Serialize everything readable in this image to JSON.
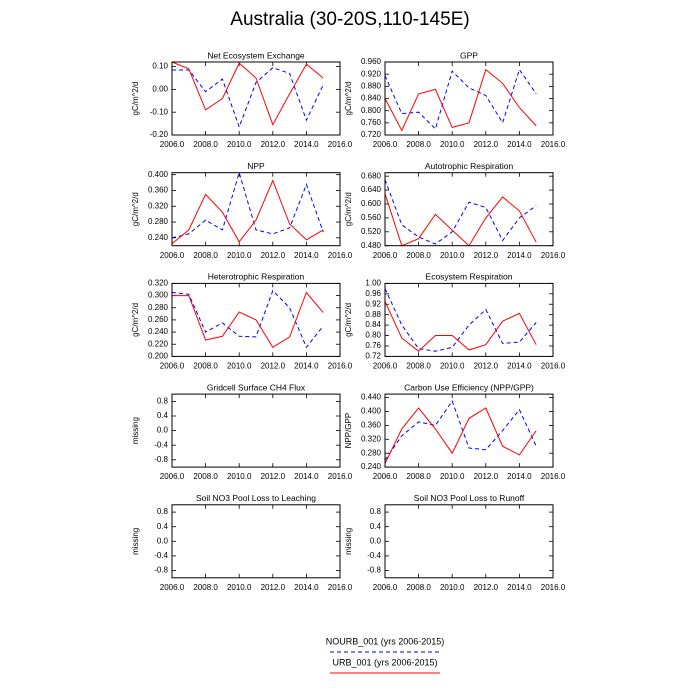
{
  "title": "Australia (30-20S,110-145E)",
  "chart_data": [
    {
      "type": "line",
      "title": "Net Ecosystem Exchange",
      "ylabel": "gC/m^2/d",
      "x": [
        2006,
        2007,
        2008,
        2009,
        2010,
        2011,
        2012,
        2013,
        2014,
        2015
      ],
      "xlim": [
        2006,
        2016
      ],
      "xticks": [
        {
          "value": 2006,
          "label": "2006.0"
        },
        {
          "value": 2008,
          "label": "2008.0"
        },
        {
          "value": 2010,
          "label": "2010.0"
        },
        {
          "value": 2012,
          "label": "2012.0"
        },
        {
          "value": 2014,
          "label": "2014.0"
        },
        {
          "value": 2016,
          "label": "2016.0"
        }
      ],
      "ylim": [
        -0.2,
        0.12
      ],
      "yticks": [
        {
          "value": -0.2,
          "label": "-0.20"
        },
        {
          "value": -0.1,
          "label": "-0.10"
        },
        {
          "value": 0,
          "label": "0.00"
        },
        {
          "value": 0.1,
          "label": "0.10"
        }
      ],
      "series": [
        {
          "name": "NOURB_001 (yrs 2006-2015)",
          "color": "#0000ff",
          "dashed": true,
          "values": [
            0.085,
            0.085,
            -0.01,
            0.045,
            -0.165,
            0.03,
            0.095,
            0.07,
            -0.135,
            0.02
          ]
        },
        {
          "name": "URB_001 (yrs 2006-2015)",
          "color": "#ff0000",
          "dashed": false,
          "values": [
            0.12,
            0.09,
            -0.09,
            -0.04,
            0.115,
            0.05,
            -0.155,
            -0.02,
            0.11,
            0.05
          ]
        }
      ]
    },
    {
      "type": "line",
      "title": "GPP",
      "ylabel": "gC/m^2/d",
      "x": [
        2006,
        2007,
        2008,
        2009,
        2010,
        2011,
        2012,
        2013,
        2014,
        2015
      ],
      "xlim": [
        2006,
        2016
      ],
      "xticks": [
        {
          "value": 2006,
          "label": "2006.0"
        },
        {
          "value": 2008,
          "label": "2008.0"
        },
        {
          "value": 2010,
          "label": "2010.0"
        },
        {
          "value": 2012,
          "label": "2012.0"
        },
        {
          "value": 2014,
          "label": "2014.0"
        },
        {
          "value": 2016,
          "label": "2016.0"
        }
      ],
      "ylim": [
        0.72,
        0.96
      ],
      "yticks": [
        {
          "value": 0.72,
          "label": "0.720"
        },
        {
          "value": 0.76,
          "label": "0.760"
        },
        {
          "value": 0.8,
          "label": "0.800"
        },
        {
          "value": 0.84,
          "label": "0.840"
        },
        {
          "value": 0.88,
          "label": "0.880"
        },
        {
          "value": 0.92,
          "label": "0.920"
        },
        {
          "value": 0.96,
          "label": "0.960"
        }
      ],
      "series": [
        {
          "name": "NOURB_001 (yrs 2006-2015)",
          "color": "#0000ff",
          "dashed": true,
          "values": [
            0.915,
            0.79,
            0.795,
            0.74,
            0.93,
            0.875,
            0.85,
            0.76,
            0.935,
            0.855
          ]
        },
        {
          "name": "URB_001 (yrs 2006-2015)",
          "color": "#ff0000",
          "dashed": false,
          "values": [
            0.84,
            0.735,
            0.855,
            0.87,
            0.745,
            0.76,
            0.935,
            0.89,
            0.81,
            0.75
          ]
        }
      ]
    },
    {
      "type": "line",
      "title": "NPP",
      "ylabel": "gC/m^2/d",
      "x": [
        2006,
        2007,
        2008,
        2009,
        2010,
        2011,
        2012,
        2013,
        2014,
        2015
      ],
      "xlim": [
        2006,
        2016
      ],
      "xticks": [
        {
          "value": 2006,
          "label": "2006.0"
        },
        {
          "value": 2008,
          "label": "2008.0"
        },
        {
          "value": 2010,
          "label": "2010.0"
        },
        {
          "value": 2012,
          "label": "2012.0"
        },
        {
          "value": 2014,
          "label": "2014.0"
        },
        {
          "value": 2016,
          "label": "2016.0"
        }
      ],
      "ylim": [
        0.22,
        0.405
      ],
      "yticks": [
        {
          "value": 0.24,
          "label": "0.240"
        },
        {
          "value": 0.28,
          "label": "0.280"
        },
        {
          "value": 0.32,
          "label": "0.320"
        },
        {
          "value": 0.36,
          "label": "0.360"
        },
        {
          "value": 0.4,
          "label": "0.400"
        }
      ],
      "series": [
        {
          "name": "NOURB_001 (yrs 2006-2015)",
          "color": "#0000ff",
          "dashed": true,
          "values": [
            0.24,
            0.25,
            0.285,
            0.26,
            0.405,
            0.26,
            0.25,
            0.265,
            0.375,
            0.255
          ]
        },
        {
          "name": "URB_001 (yrs 2006-2015)",
          "color": "#ff0000",
          "dashed": false,
          "values": [
            0.225,
            0.26,
            0.35,
            0.305,
            0.23,
            0.285,
            0.385,
            0.275,
            0.235,
            0.26
          ]
        }
      ]
    },
    {
      "type": "line",
      "title": "Autotrophic Respiration",
      "ylabel": "gC/m^2/d",
      "x": [
        2006,
        2007,
        2008,
        2009,
        2010,
        2011,
        2012,
        2013,
        2014,
        2015
      ],
      "xlim": [
        2006,
        2016
      ],
      "xticks": [
        {
          "value": 2006,
          "label": "2006.0"
        },
        {
          "value": 2008,
          "label": "2008.0"
        },
        {
          "value": 2010,
          "label": "2010.0"
        },
        {
          "value": 2012,
          "label": "2012.0"
        },
        {
          "value": 2014,
          "label": "2014.0"
        },
        {
          "value": 2016,
          "label": "2016.0"
        }
      ],
      "ylim": [
        0.48,
        0.69
      ],
      "yticks": [
        {
          "value": 0.48,
          "label": "0.480"
        },
        {
          "value": 0.52,
          "label": "0.520"
        },
        {
          "value": 0.56,
          "label": "0.560"
        },
        {
          "value": 0.6,
          "label": "0.600"
        },
        {
          "value": 0.64,
          "label": "0.640"
        },
        {
          "value": 0.68,
          "label": "0.680"
        }
      ],
      "series": [
        {
          "name": "NOURB_001 (yrs 2006-2015)",
          "color": "#0000ff",
          "dashed": true,
          "values": [
            0.67,
            0.54,
            0.505,
            0.485,
            0.52,
            0.605,
            0.59,
            0.495,
            0.56,
            0.595
          ]
        },
        {
          "name": "URB_001 (yrs 2006-2015)",
          "color": "#ff0000",
          "dashed": false,
          "values": [
            0.63,
            0.48,
            0.5,
            0.57,
            0.525,
            0.48,
            0.56,
            0.62,
            0.58,
            0.49
          ]
        }
      ]
    },
    {
      "type": "line",
      "title": "Heterotrophic Respiration",
      "ylabel": "gC/m^2/d",
      "x": [
        2006,
        2007,
        2008,
        2009,
        2010,
        2011,
        2012,
        2013,
        2014,
        2015
      ],
      "xlim": [
        2006,
        2016
      ],
      "xticks": [
        {
          "value": 2006,
          "label": "2006.0"
        },
        {
          "value": 2008,
          "label": "2008.0"
        },
        {
          "value": 2010,
          "label": "2010.0"
        },
        {
          "value": 2012,
          "label": "2012.0"
        },
        {
          "value": 2014,
          "label": "2014.0"
        },
        {
          "value": 2016,
          "label": "2016.0"
        }
      ],
      "ylim": [
        0.2,
        0.32
      ],
      "yticks": [
        {
          "value": 0.2,
          "label": "0.200"
        },
        {
          "value": 0.22,
          "label": "0.220"
        },
        {
          "value": 0.24,
          "label": "0.240"
        },
        {
          "value": 0.26,
          "label": "0.260"
        },
        {
          "value": 0.28,
          "label": "0.280"
        },
        {
          "value": 0.3,
          "label": "0.300"
        },
        {
          "value": 0.32,
          "label": "0.320"
        }
      ],
      "series": [
        {
          "name": "NOURB_001 (yrs 2006-2015)",
          "color": "#0000ff",
          "dashed": true,
          "values": [
            0.305,
            0.302,
            0.24,
            0.255,
            0.233,
            0.232,
            0.308,
            0.28,
            0.215,
            0.25
          ]
        },
        {
          "name": "URB_001 (yrs 2006-2015)",
          "color": "#ff0000",
          "dashed": false,
          "values": [
            0.3,
            0.3,
            0.227,
            0.233,
            0.273,
            0.26,
            0.215,
            0.232,
            0.305,
            0.272
          ]
        }
      ]
    },
    {
      "type": "line",
      "title": "Ecosystem Respiration",
      "ylabel": "gC/m^2/d",
      "x": [
        2006,
        2007,
        2008,
        2009,
        2010,
        2011,
        2012,
        2013,
        2014,
        2015
      ],
      "xlim": [
        2006,
        2016
      ],
      "xticks": [
        {
          "value": 2006,
          "label": "2006.0"
        },
        {
          "value": 2008,
          "label": "2008.0"
        },
        {
          "value": 2010,
          "label": "2010.0"
        },
        {
          "value": 2012,
          "label": "2012.0"
        },
        {
          "value": 2014,
          "label": "2014.0"
        },
        {
          "value": 2016,
          "label": "2016.0"
        }
      ],
      "ylim": [
        0.72,
        1.0
      ],
      "yticks": [
        {
          "value": 0.72,
          "label": "0.72"
        },
        {
          "value": 0.76,
          "label": "0.76"
        },
        {
          "value": 0.8,
          "label": "0.80"
        },
        {
          "value": 0.84,
          "label": "0.84"
        },
        {
          "value": 0.88,
          "label": "0.88"
        },
        {
          "value": 0.92,
          "label": "0.92"
        },
        {
          "value": 0.96,
          "label": "0.96"
        },
        {
          "value": 1.0,
          "label": "1.00"
        }
      ],
      "series": [
        {
          "name": "NOURB_001 (yrs 2006-2015)",
          "color": "#0000ff",
          "dashed": true,
          "values": [
            0.98,
            0.84,
            0.75,
            0.74,
            0.755,
            0.84,
            0.9,
            0.77,
            0.775,
            0.85
          ]
        },
        {
          "name": "URB_001 (yrs 2006-2015)",
          "color": "#ff0000",
          "dashed": false,
          "values": [
            0.93,
            0.79,
            0.74,
            0.8,
            0.8,
            0.745,
            0.765,
            0.855,
            0.885,
            0.765
          ]
        }
      ]
    },
    {
      "type": "empty",
      "title": "Gridcell Surface CH4 Flux",
      "ylabel": "missing",
      "xlim": [
        2006,
        2016
      ],
      "xticks": [
        {
          "value": 2006,
          "label": "2006.0"
        },
        {
          "value": 2008,
          "label": "2008.0"
        },
        {
          "value": 2010,
          "label": "2010.0"
        },
        {
          "value": 2012,
          "label": "2012.0"
        },
        {
          "value": 2014,
          "label": "2014.0"
        },
        {
          "value": 2016,
          "label": "2016.0"
        }
      ],
      "ylim": [
        -1,
        1
      ],
      "yticks": [
        -0.8,
        -0.4,
        {
          "value": 0,
          "label": "0.0"
        },
        0.4,
        0.8
      ]
    },
    {
      "type": "line",
      "title": "Carbon Use Efficiency (NPP/GPP)",
      "ylabel": "NPP/GPP",
      "x": [
        2006,
        2007,
        2008,
        2009,
        2010,
        2011,
        2012,
        2013,
        2014,
        2015
      ],
      "xlim": [
        2006,
        2016
      ],
      "xticks": [
        {
          "value": 2006,
          "label": "2006.0"
        },
        {
          "value": 2008,
          "label": "2008.0"
        },
        {
          "value": 2010,
          "label": "2010.0"
        },
        {
          "value": 2012,
          "label": "2012.0"
        },
        {
          "value": 2014,
          "label": "2014.0"
        },
        {
          "value": 2016,
          "label": "2016.0"
        }
      ],
      "ylim": [
        0.24,
        0.45
      ],
      "yticks": [
        {
          "value": 0.24,
          "label": "0.240"
        },
        {
          "value": 0.28,
          "label": "0.280"
        },
        {
          "value": 0.32,
          "label": "0.320"
        },
        {
          "value": 0.36,
          "label": "0.360"
        },
        {
          "value": 0.4,
          "label": "0.400"
        },
        {
          "value": 0.44,
          "label": "0.440"
        }
      ],
      "series": [
        {
          "name": "NOURB_001 (yrs 2006-2015)",
          "color": "#0000ff",
          "dashed": true,
          "values": [
            0.26,
            0.33,
            0.37,
            0.36,
            0.43,
            0.295,
            0.29,
            0.345,
            0.405,
            0.3
          ]
        },
        {
          "name": "URB_001 (yrs 2006-2015)",
          "color": "#ff0000",
          "dashed": false,
          "values": [
            0.25,
            0.35,
            0.41,
            0.35,
            0.28,
            0.38,
            0.41,
            0.3,
            0.275,
            0.345
          ]
        }
      ]
    },
    {
      "type": "empty",
      "title": "Soil NO3 Pool Loss to Leaching",
      "ylabel": "missing",
      "xlim": [
        2006,
        2016
      ],
      "xticks": [
        {
          "value": 2006,
          "label": "2006.0"
        },
        {
          "value": 2008,
          "label": "2008.0"
        },
        {
          "value": 2010,
          "label": "2010.0"
        },
        {
          "value": 2012,
          "label": "2012.0"
        },
        {
          "value": 2014,
          "label": "2014.0"
        },
        {
          "value": 2016,
          "label": "2016.0"
        }
      ],
      "ylim": [
        -1,
        1
      ],
      "yticks": [
        -0.8,
        -0.4,
        {
          "value": 0,
          "label": "0.0"
        },
        0.4,
        0.8
      ]
    },
    {
      "type": "empty",
      "title": "Soil NO3 Pool Loss to Runoff",
      "ylabel": "missing",
      "xlim": [
        2006,
        2016
      ],
      "xticks": [
        {
          "value": 2006,
          "label": "2006.0"
        },
        {
          "value": 2008,
          "label": "2008.0"
        },
        {
          "value": 2010,
          "label": "2010.0"
        },
        {
          "value": 2012,
          "label": "2012.0"
        },
        {
          "value": 2014,
          "label": "2014.0"
        },
        {
          "value": 2016,
          "label": "2016.0"
        }
      ],
      "ylim": [
        -1,
        1
      ],
      "yticks": [
        -0.8,
        -0.4,
        {
          "value": 0,
          "label": "0.0"
        },
        0.4,
        0.8
      ]
    }
  ]
}
